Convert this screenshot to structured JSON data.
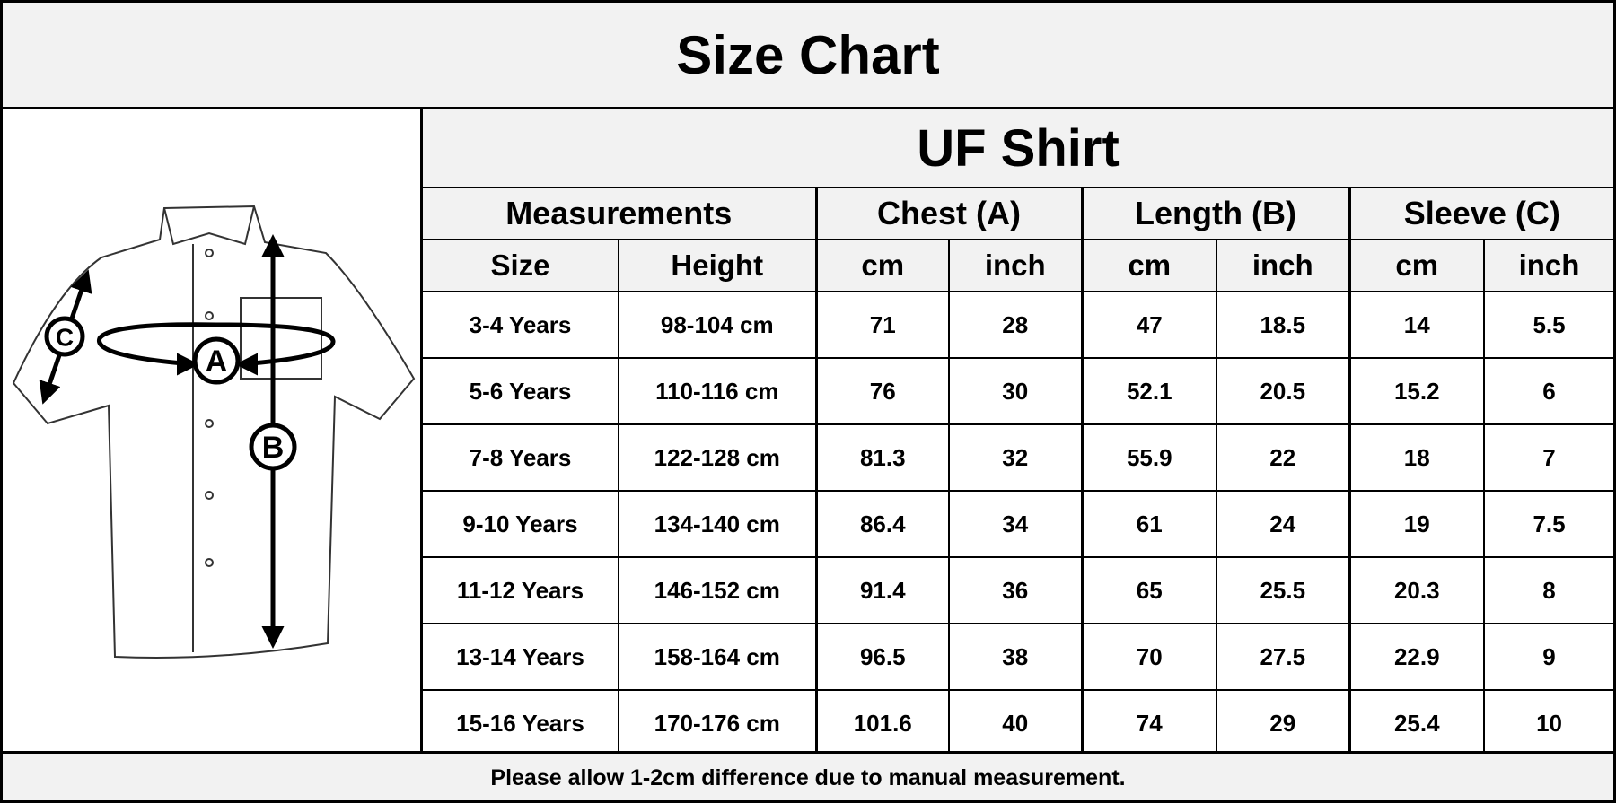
{
  "header": {
    "title": "Size Chart"
  },
  "diagram": {
    "labels": [
      "A",
      "B",
      "C"
    ]
  },
  "table": {
    "title": "UF Shirt",
    "groups": [
      {
        "label": "Measurements",
        "columns": [
          "Size",
          "Height"
        ]
      },
      {
        "label": "Chest (A)",
        "columns": [
          "cm",
          "inch"
        ]
      },
      {
        "label": "Length (B)",
        "columns": [
          "cm",
          "inch"
        ]
      },
      {
        "label": "Sleeve (C)",
        "columns": [
          "cm",
          "inch"
        ]
      }
    ],
    "rows": [
      [
        "3-4 Years",
        "98-104 cm",
        "71",
        "28",
        "47",
        "18.5",
        "14",
        "5.5"
      ],
      [
        "5-6 Years",
        "110-116 cm",
        "76",
        "30",
        "52.1",
        "20.5",
        "15.2",
        "6"
      ],
      [
        "7-8 Years",
        "122-128 cm",
        "81.3",
        "32",
        "55.9",
        "22",
        "18",
        "7"
      ],
      [
        "9-10 Years",
        "134-140 cm",
        "86.4",
        "34",
        "61",
        "24",
        "19",
        "7.5"
      ],
      [
        "11-12 Years",
        "146-152 cm",
        "91.4",
        "36",
        "65",
        "25.5",
        "20.3",
        "8"
      ],
      [
        "13-14 Years",
        "158-164 cm",
        "96.5",
        "38",
        "70",
        "27.5",
        "22.9",
        "9"
      ],
      [
        "15-16 Years",
        "170-176 cm",
        "101.6",
        "40",
        "74",
        "29",
        "25.4",
        "10"
      ]
    ]
  },
  "footer": {
    "note": "Please allow 1-2cm difference due to manual measurement."
  }
}
